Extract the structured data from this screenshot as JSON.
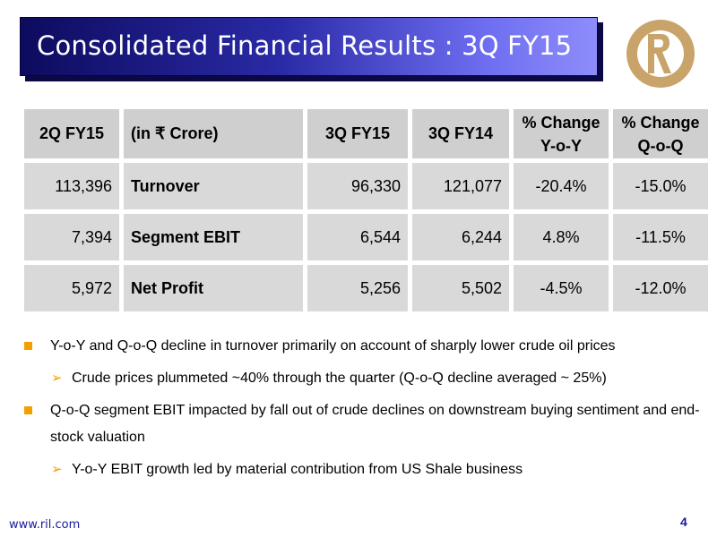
{
  "slide": {
    "title": "Consolidated Financial Results : 3Q FY15",
    "logo_colors": {
      "primary": "#c9a46a"
    },
    "footer_url": "www.ril.com",
    "page_number": "4"
  },
  "table": {
    "headers": [
      "2Q FY15",
      "(in ₹ Crore)",
      "3Q FY15",
      "3Q FY14",
      "% Change Y-o-Y",
      "% Change Q-o-Q"
    ],
    "header_lines": {
      "yoy": [
        "% Change",
        "Y-o-Y"
      ],
      "qoq": [
        "% Change",
        "Q-o-Q"
      ]
    },
    "rows": [
      {
        "q2fy15": "113,396",
        "label": "Turnover",
        "q3fy15": "96,330",
        "q3fy14": "121,077",
        "yoy": "-20.4%",
        "qoq": "-15.0%"
      },
      {
        "q2fy15": "7,394",
        "label": "Segment EBIT",
        "q3fy15": "6,544",
        "q3fy14": "6,244",
        "yoy": "4.8%",
        "qoq": "-11.5%"
      },
      {
        "q2fy15": "5,972",
        "label": "Net Profit",
        "q3fy15": "5,256",
        "q3fy14": "5,502",
        "yoy": "-4.5%",
        "qoq": "-12.0%"
      }
    ],
    "colors": {
      "negative": "#e00000",
      "cell_bg": "#d9d9d9"
    }
  },
  "bullets": [
    {
      "level": 1,
      "text": "Y-o-Y and Q-o-Q decline in turnover primarily on account of sharply lower crude oil prices"
    },
    {
      "level": 2,
      "text": "Crude prices plummeted ~40% through the quarter (Q-o-Q decline averaged ~ 25%)"
    },
    {
      "level": 1,
      "text": "Q-o-Q segment EBIT impacted by fall out of crude declines on downstream buying sentiment and end-stock valuation"
    },
    {
      "level": 2,
      "text": "Y-o-Y EBIT growth led by material contribution from US Shale business"
    }
  ]
}
